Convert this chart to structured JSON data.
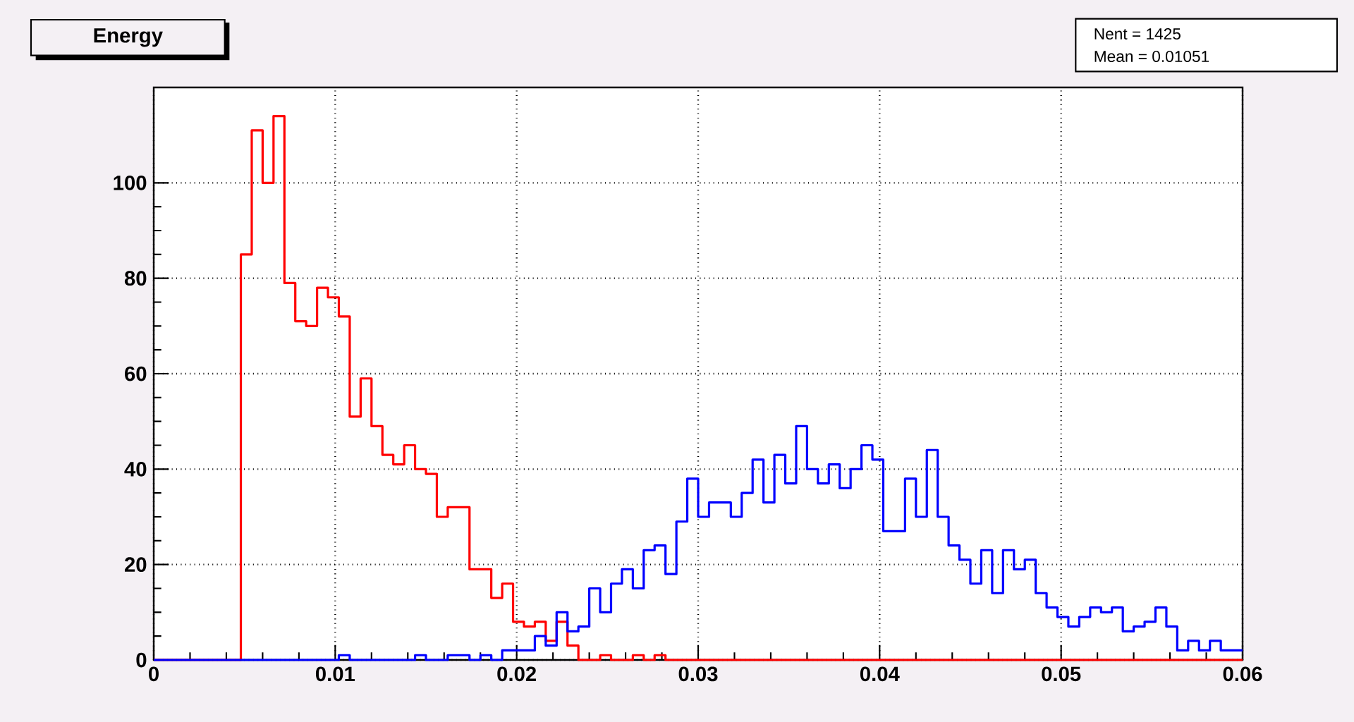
{
  "chart_data": {
    "type": "histogram",
    "title": "Energy",
    "annotations": [
      "Nent = 1425",
      "Mean = 0.01051"
    ],
    "bins": [
      0,
      0.0006,
      0.0012,
      0.0018,
      0.0024,
      0.003,
      0.0036,
      0.0042,
      0.0048,
      0.0054,
      0.006,
      0.0066,
      0.0072,
      0.0078,
      0.0084,
      0.009,
      0.0096,
      0.0102,
      0.0108,
      0.0114,
      0.012,
      0.0126,
      0.0132,
      0.0138,
      0.0144,
      0.015,
      0.0156,
      0.0162,
      0.0168,
      0.0174,
      0.018,
      0.0186,
      0.0192,
      0.0198,
      0.0204,
      0.021,
      0.0216,
      0.0222,
      0.0228,
      0.0234,
      0.024,
      0.0246,
      0.0252,
      0.0258,
      0.0264,
      0.027,
      0.0276,
      0.0282,
      0.0288,
      0.0294,
      0.03,
      0.0306,
      0.0312,
      0.0318,
      0.0324,
      0.033,
      0.0336,
      0.0342,
      0.0348,
      0.0354,
      0.036,
      0.0366,
      0.0372,
      0.0378,
      0.0384,
      0.039,
      0.0396,
      0.0402,
      0.0408,
      0.0414,
      0.042,
      0.0426,
      0.0432,
      0.0438,
      0.0444,
      0.045,
      0.0456,
      0.0462,
      0.0468,
      0.0474,
      0.048,
      0.0486,
      0.0492,
      0.0498,
      0.0504,
      0.051,
      0.0516,
      0.0522,
      0.0528,
      0.0534,
      0.054,
      0.0546,
      0.0552,
      0.0558,
      0.0564,
      0.057,
      0.0576,
      0.0582,
      0.0588,
      0.0594,
      0.06
    ],
    "series": [
      {
        "color": "#ff0000",
        "values": [
          0,
          0,
          0,
          0,
          0,
          0,
          0,
          0,
          85,
          111,
          100,
          114,
          79,
          71,
          70,
          78,
          76,
          72,
          51,
          59,
          49,
          43,
          41,
          45,
          40,
          39,
          30,
          32,
          32,
          19,
          19,
          13,
          16,
          8,
          7,
          8,
          4,
          8,
          3,
          0,
          0,
          1,
          0,
          0,
          1,
          0,
          1,
          0,
          0,
          0,
          0,
          0,
          0,
          0,
          0,
          0,
          0,
          0,
          0,
          0,
          0,
          0,
          0,
          0,
          0,
          0,
          0,
          0,
          0,
          0,
          0,
          0,
          0,
          0,
          0,
          0,
          0,
          0,
          0,
          0,
          0,
          0,
          0,
          0,
          0,
          0,
          0,
          0,
          0,
          0,
          0,
          0,
          0,
          0,
          0,
          0,
          0,
          0,
          0,
          0
        ]
      },
      {
        "color": "#0000ff",
        "values": [
          0,
          0,
          0,
          0,
          0,
          0,
          0,
          0,
          0,
          0,
          0,
          0,
          0,
          0,
          0,
          0,
          0,
          1,
          0,
          0,
          0,
          0,
          0,
          0,
          1,
          0,
          0,
          1,
          1,
          0,
          1,
          0,
          2,
          2,
          2,
          5,
          3,
          10,
          6,
          7,
          15,
          10,
          16,
          19,
          15,
          23,
          24,
          18,
          29,
          38,
          30,
          33,
          33,
          30,
          35,
          42,
          33,
          43,
          37,
          49,
          40,
          37,
          41,
          36,
          40,
          45,
          42,
          27,
          27,
          38,
          30,
          44,
          30,
          24,
          21,
          16,
          23,
          14,
          23,
          19,
          21,
          14,
          11,
          9,
          7,
          9,
          11,
          10,
          11,
          6,
          7,
          8,
          11,
          7,
          2,
          4,
          2,
          4,
          2,
          2
        ]
      }
    ],
    "xlim": [
      0,
      0.06
    ],
    "ylim": [
      0,
      120
    ],
    "xticks": [
      0,
      0.01,
      0.02,
      0.03,
      0.04,
      0.05,
      0.06
    ],
    "yticks": [
      0,
      20,
      40,
      60,
      80,
      100
    ],
    "grid": true
  }
}
